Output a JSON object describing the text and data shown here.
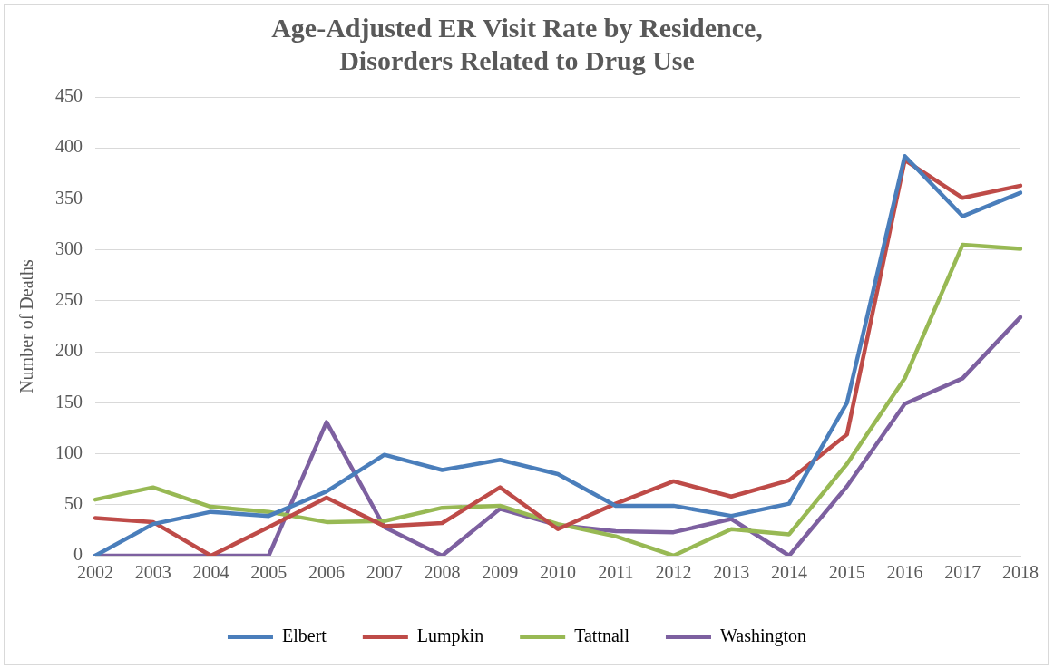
{
  "chart_data": {
    "type": "line",
    "title": "Age-Adjusted ER Visit Rate by Residence,\nDisorders Related to Drug Use",
    "ylabel": "Number of Deaths",
    "categories": [
      "2002",
      "2003",
      "2004",
      "2005",
      "2006",
      "2007",
      "2008",
      "2009",
      "2010",
      "2011",
      "2012",
      "2013",
      "2014",
      "2015",
      "2016",
      "2017",
      "2018"
    ],
    "series": [
      {
        "name": "Elbert",
        "color": "#4a7ebb",
        "values": [
          0,
          31,
          43,
          39,
          63,
          99,
          84,
          94,
          80,
          49,
          49,
          39,
          51,
          150,
          392,
          333,
          356
        ]
      },
      {
        "name": "Lumpkin",
        "color": "#be4b48",
        "values": [
          37,
          33,
          0,
          28,
          57,
          29,
          32,
          67,
          26,
          51,
          73,
          58,
          74,
          119,
          388,
          351,
          363
        ]
      },
      {
        "name": "Tattnall",
        "color": "#98b954",
        "values": [
          55,
          67,
          48,
          43,
          33,
          34,
          47,
          49,
          31,
          19,
          0,
          26,
          21,
          90,
          174,
          305,
          301
        ]
      },
      {
        "name": "Washington",
        "color": "#7d60a0",
        "values": [
          0,
          0,
          0,
          0,
          131,
          28,
          0,
          46,
          30,
          24,
          23,
          36,
          0,
          68,
          149,
          174,
          234
        ]
      }
    ],
    "ylim": [
      0,
      450
    ],
    "yticks": [
      0,
      50,
      100,
      150,
      200,
      250,
      300,
      350,
      400,
      450
    ],
    "grid": "y",
    "legend": "bottom",
    "marker": "none",
    "line_style": "solid"
  }
}
